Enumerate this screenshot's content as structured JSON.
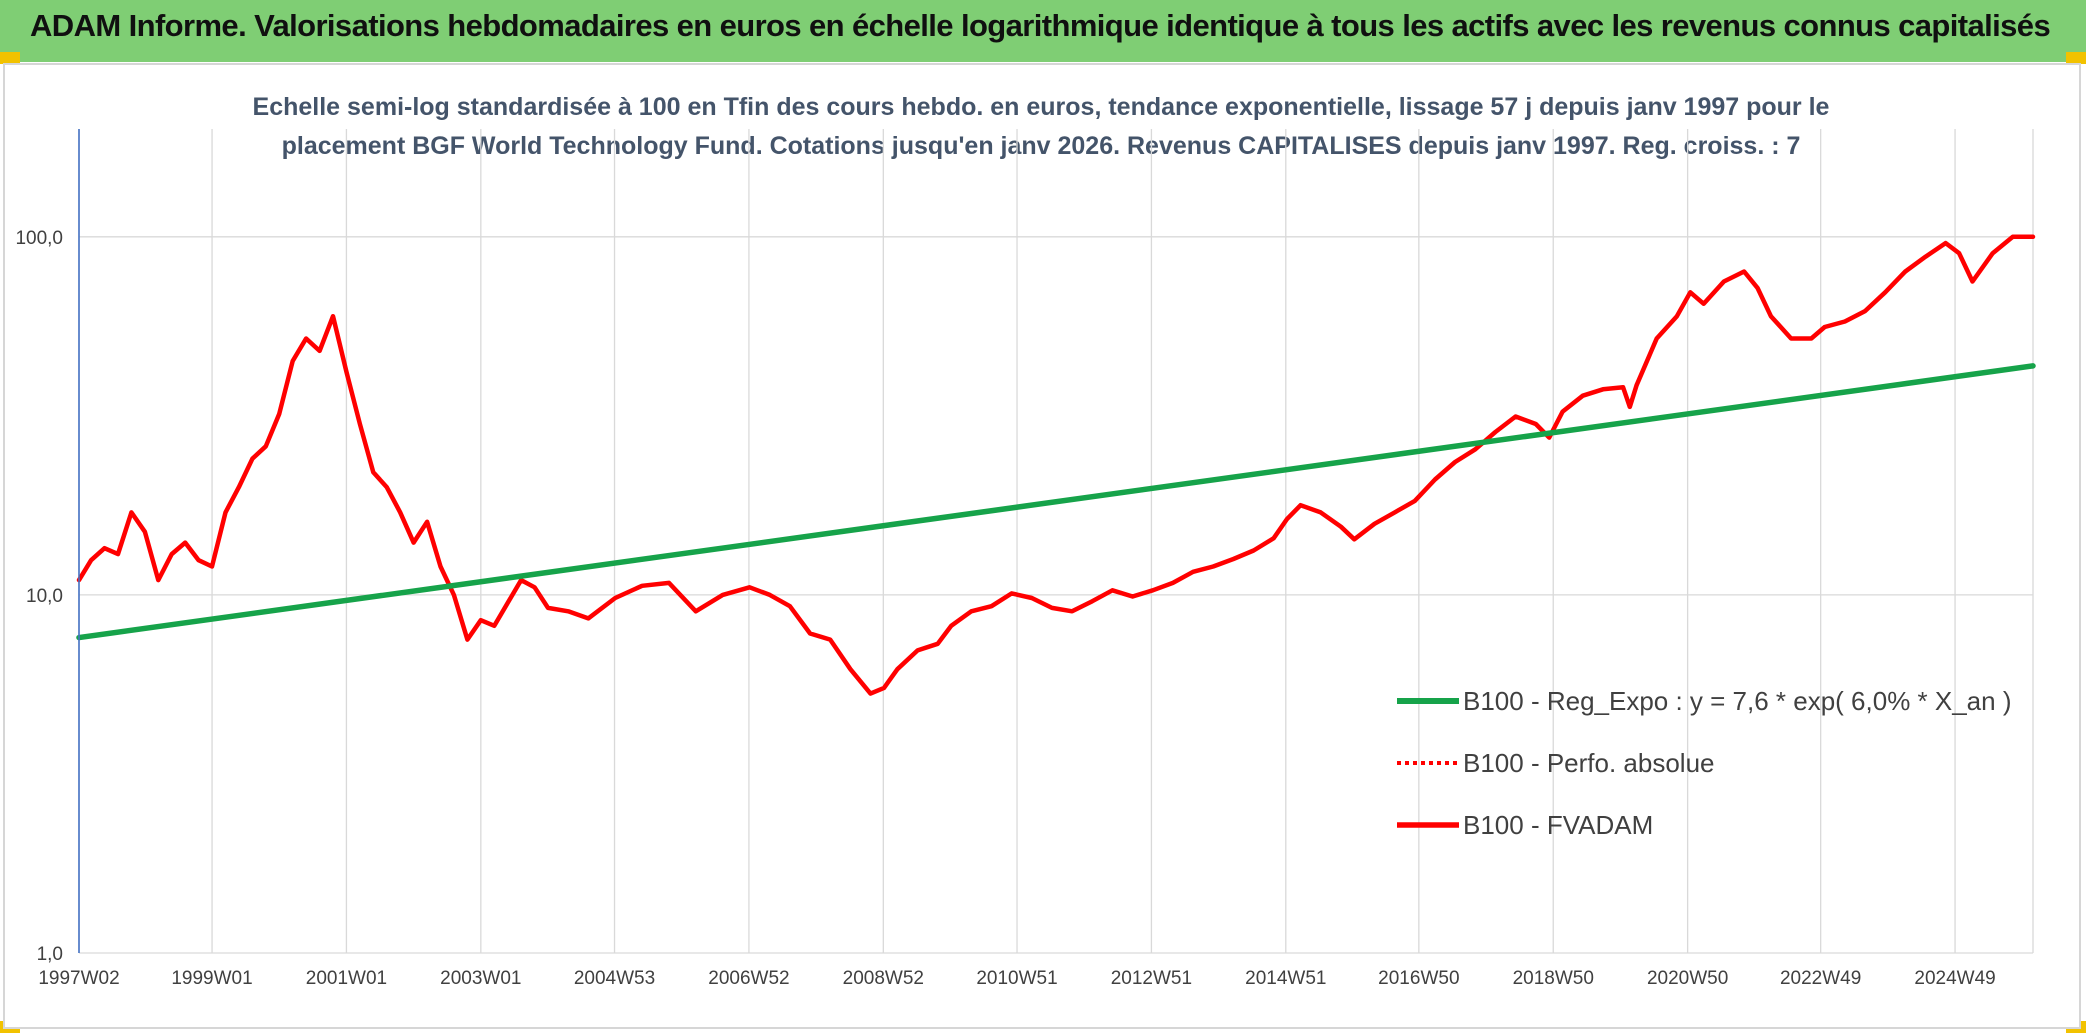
{
  "header": {
    "title": "ADAM Informe. Valorisations hebdomadaires en euros en échelle logarithmique identique à tous les actifs avec les revenus connus capitalisés"
  },
  "colors": {
    "banner": "#7fce74",
    "regression": "#16a34a",
    "fvadam": "#ff0000",
    "perfo": "#ff0000",
    "corner_accent": "#f2c200"
  },
  "chart_data": {
    "type": "line",
    "title_lines": [
      "Echelle semi-log standardisée à 100 en Tfin des cours hebdo. en euros, tendance exponentielle, lissage 57 j depuis janv 1997 pour le",
      "placement BGF World Technology Fund. Cotations jusqu'en janv 2026. Revenus CAPITALISES depuis janv 1997. Reg. croiss. : 7"
    ],
    "y_scale": "log",
    "ylim": [
      1,
      200
    ],
    "y_ticks": [
      {
        "value": 1,
        "label": "1,0"
      },
      {
        "value": 10,
        "label": "10,0"
      },
      {
        "value": 100,
        "label": "100,0"
      }
    ],
    "xlim": [
      1997.02,
      2026.1
    ],
    "x_ticks": [
      {
        "year": 1997.02,
        "label": "1997W02"
      },
      {
        "year": 1999.0,
        "label": "1999W01"
      },
      {
        "year": 2001.0,
        "label": "2001W01"
      },
      {
        "year": 2003.0,
        "label": "2003W01"
      },
      {
        "year": 2004.99,
        "label": "2004W53"
      },
      {
        "year": 2006.99,
        "label": "2006W52"
      },
      {
        "year": 2008.99,
        "label": "2008W52"
      },
      {
        "year": 2010.98,
        "label": "2010W51"
      },
      {
        "year": 2012.98,
        "label": "2012W51"
      },
      {
        "year": 2014.98,
        "label": "2014W51"
      },
      {
        "year": 2016.96,
        "label": "2016W50"
      },
      {
        "year": 2018.96,
        "label": "2018W50"
      },
      {
        "year": 2020.96,
        "label": "2020W50"
      },
      {
        "year": 2022.94,
        "label": "2022W49"
      },
      {
        "year": 2024.94,
        "label": "2024W49"
      }
    ],
    "grid": true,
    "legend_position": "right-bottom",
    "legend": [
      {
        "label": "B100 - Reg_Expo : y = 7,6 * exp( 6,0% *  X_an )",
        "style": "solid-green"
      },
      {
        "label": "B100 - Perfo. absolue",
        "style": "dotted-red"
      },
      {
        "label": "B100 - FVADAM",
        "style": "solid-red"
      }
    ],
    "series": [
      {
        "name": "B100 - Reg_Expo : y = 7,6 * exp( 6,0% *  X_an )",
        "kind": "regression",
        "x": [
          1997.02,
          2026.1
        ],
        "y": [
          7.6,
          43.6
        ]
      },
      {
        "name": "B100 - FVADAM",
        "kind": "price",
        "x": [
          1997.0,
          1997.2,
          1997.4,
          1997.6,
          1997.8,
          1998.0,
          1998.2,
          1998.4,
          1998.6,
          1998.8,
          1999.0,
          1999.2,
          1999.4,
          1999.6,
          1999.8,
          2000.0,
          2000.2,
          2000.4,
          2000.6,
          2000.8,
          2001.0,
          2001.2,
          2001.4,
          2001.6,
          2001.8,
          2002.0,
          2002.2,
          2002.4,
          2002.6,
          2002.8,
          2003.0,
          2003.2,
          2003.4,
          2003.6,
          2003.8,
          2004.0,
          2004.3,
          2004.6,
          2005.0,
          2005.4,
          2005.8,
          2006.2,
          2006.6,
          2007.0,
          2007.3,
          2007.6,
          2007.9,
          2008.2,
          2008.5,
          2008.8,
          2009.0,
          2009.2,
          2009.5,
          2009.8,
          2010.0,
          2010.3,
          2010.6,
          2010.9,
          2011.2,
          2011.5,
          2011.8,
          2012.1,
          2012.4,
          2012.7,
          2013.0,
          2013.3,
          2013.6,
          2013.9,
          2014.2,
          2014.5,
          2014.8,
          2015.0,
          2015.2,
          2015.5,
          2015.8,
          2016.0,
          2016.3,
          2016.6,
          2016.9,
          2017.2,
          2017.5,
          2017.8,
          2018.1,
          2018.4,
          2018.7,
          2018.9,
          2019.1,
          2019.4,
          2019.7,
          2020.0,
          2020.1,
          2020.2,
          2020.5,
          2020.8,
          2021.0,
          2021.2,
          2021.5,
          2021.8,
          2022.0,
          2022.2,
          2022.5,
          2022.8,
          2023.0,
          2023.3,
          2023.6,
          2023.9,
          2024.2,
          2024.5,
          2024.8,
          2025.0,
          2025.2,
          2025.5,
          2025.8,
          2026.1
        ],
        "y": [
          11,
          12.5,
          13.5,
          13,
          17,
          15,
          11,
          13,
          14,
          12.5,
          12,
          17,
          20,
          24,
          26,
          32,
          45,
          52,
          48,
          60,
          42,
          30,
          22,
          20,
          17,
          14,
          16,
          12,
          10,
          7.5,
          8.5,
          8.2,
          9.5,
          11,
          10.5,
          9.2,
          9,
          8.6,
          9.8,
          10.6,
          10.8,
          9,
          10,
          10.5,
          10,
          9.3,
          7.8,
          7.5,
          6.2,
          5.3,
          5.5,
          6.2,
          7,
          7.3,
          8.2,
          9.0,
          9.3,
          10.1,
          9.8,
          9.2,
          9.0,
          9.6,
          10.3,
          9.9,
          10.3,
          10.8,
          11.6,
          12.0,
          12.6,
          13.3,
          14.4,
          16.3,
          17.8,
          17.0,
          15.5,
          14.3,
          15.8,
          17.0,
          18.3,
          21.0,
          23.5,
          25.5,
          28.5,
          31.5,
          30.0,
          27.5,
          32.5,
          36.0,
          37.5,
          38.0,
          33.5,
          38.5,
          52.0,
          60.0,
          70.0,
          65.0,
          75.0,
          80.0,
          72.0,
          60.0,
          52.0,
          52.0,
          56.0,
          58.0,
          62.0,
          70.0,
          80.0,
          88.0,
          96.0,
          90.0,
          75.0,
          90.0,
          100.0,
          100.0
        ]
      }
    ]
  }
}
